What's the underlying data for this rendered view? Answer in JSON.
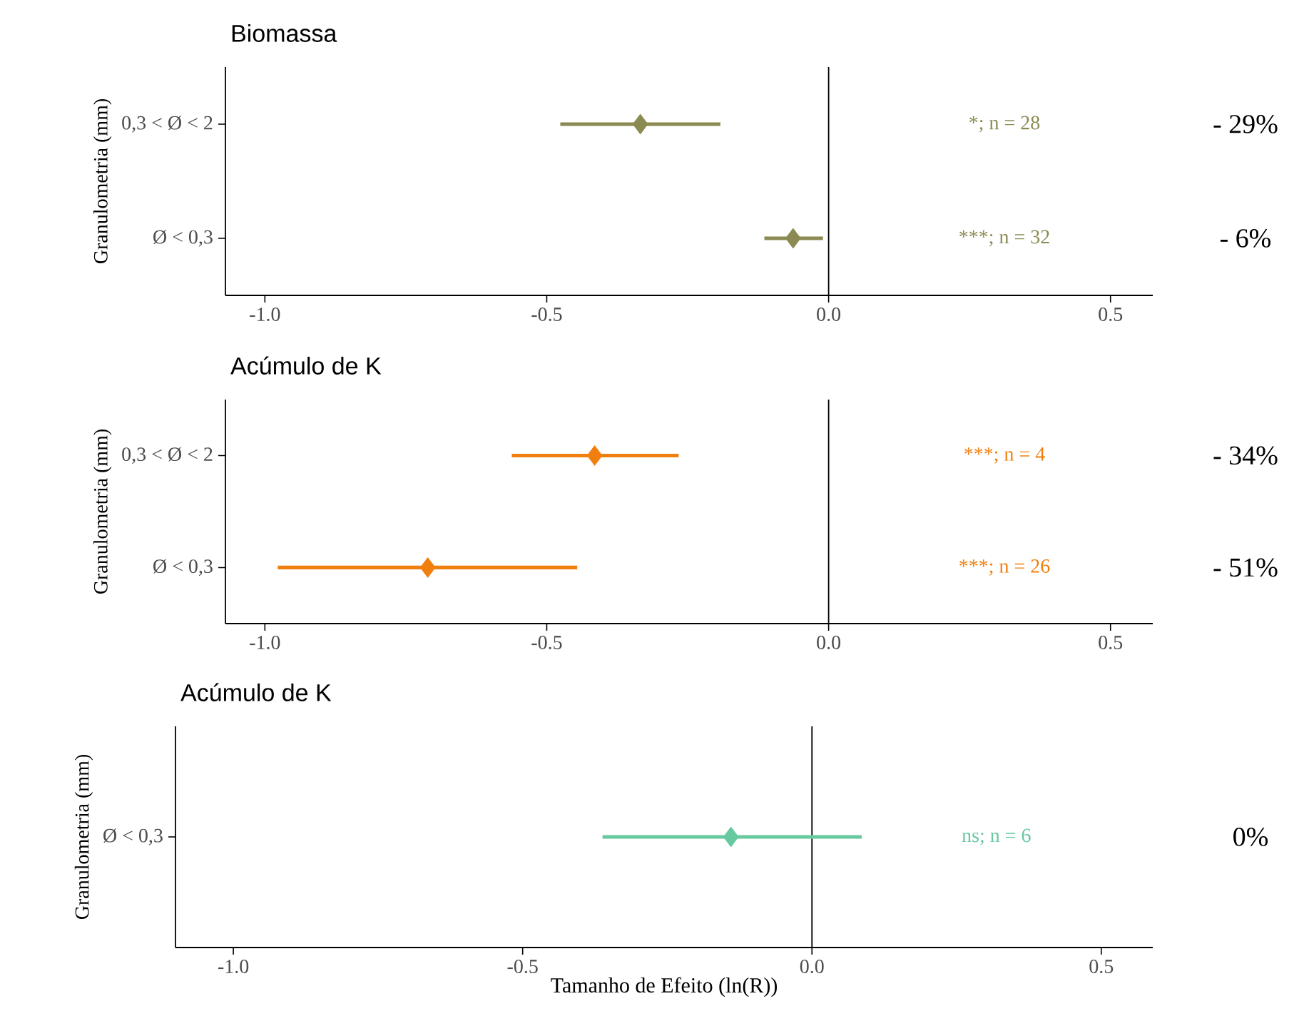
{
  "chart_data": [
    {
      "type": "scatter",
      "orientation": "horizontal",
      "title": "Biomassa",
      "ylabel": "Granulometria (mm)",
      "categories": [
        "0,3 < Ø < 2",
        "Ø < 0,3"
      ],
      "values": [
        -0.334,
        -0.063
      ],
      "errors": [
        [
          -0.476,
          -0.192
        ],
        [
          -0.114,
          -0.01
        ]
      ],
      "color": "#8b8a53",
      "marker": "diamond",
      "xlim": [
        -1.07,
        0.575
      ],
      "xticks": [
        {
          "value": -1,
          "label": "-1.0"
        },
        {
          "value": -0.5,
          "label": "-0.5"
        },
        {
          "value": 0,
          "label": "0.0"
        },
        {
          "value": 0.5,
          "label": "0.5"
        }
      ],
      "ref_lines": [
        {
          "axis": "x",
          "value": 0
        }
      ],
      "annotations": [
        "*; n = 28",
        "- 29%",
        "***; n = 32",
        "- 6%"
      ]
    },
    {
      "type": "scatter",
      "orientation": "horizontal",
      "title": "Acúmulo de K",
      "ylabel": "Granulometria (mm)",
      "categories": [
        "0,3 < Ø < 2",
        "Ø < 0,3"
      ],
      "values": [
        -0.415,
        -0.711
      ],
      "errors": [
        [
          -0.562,
          -0.266
        ],
        [
          -0.977,
          -0.446
        ]
      ],
      "color": "#f07f0e",
      "marker": "diamond",
      "xlim": [
        -1.07,
        0.575
      ],
      "xticks": [
        {
          "value": -1,
          "label": "-1.0"
        },
        {
          "value": -0.5,
          "label": "-0.5"
        },
        {
          "value": 0,
          "label": "0.0"
        },
        {
          "value": 0.5,
          "label": "0.5"
        }
      ],
      "ref_lines": [
        {
          "axis": "x",
          "value": 0
        }
      ],
      "annotations": [
        "***; n = 4",
        "- 34%",
        "***; n = 26",
        "- 51%"
      ]
    },
    {
      "type": "scatter",
      "orientation": "horizontal",
      "title": "Acúmulo de K",
      "ylabel": "Granulometria (mm)",
      "xlabel": "Tamanho de Efeito (ln(R))",
      "categories": [
        "Ø < 0,3"
      ],
      "values": [
        -0.14
      ],
      "errors": [
        [
          -0.362,
          0.086
        ]
      ],
      "color": "#66c9a0",
      "marker": "diamond",
      "xlim": [
        -1.1,
        0.589
      ],
      "xticks": [
        {
          "value": -1,
          "label": "-1.0"
        },
        {
          "value": -0.5,
          "label": "-0.5"
        },
        {
          "value": 0,
          "label": "0.0"
        },
        {
          "value": 0.5,
          "label": "0.5"
        }
      ],
      "ref_lines": [
        {
          "axis": "x",
          "value": 0
        }
      ],
      "annotations": [
        "ns; n = 6",
        "0%"
      ]
    }
  ]
}
